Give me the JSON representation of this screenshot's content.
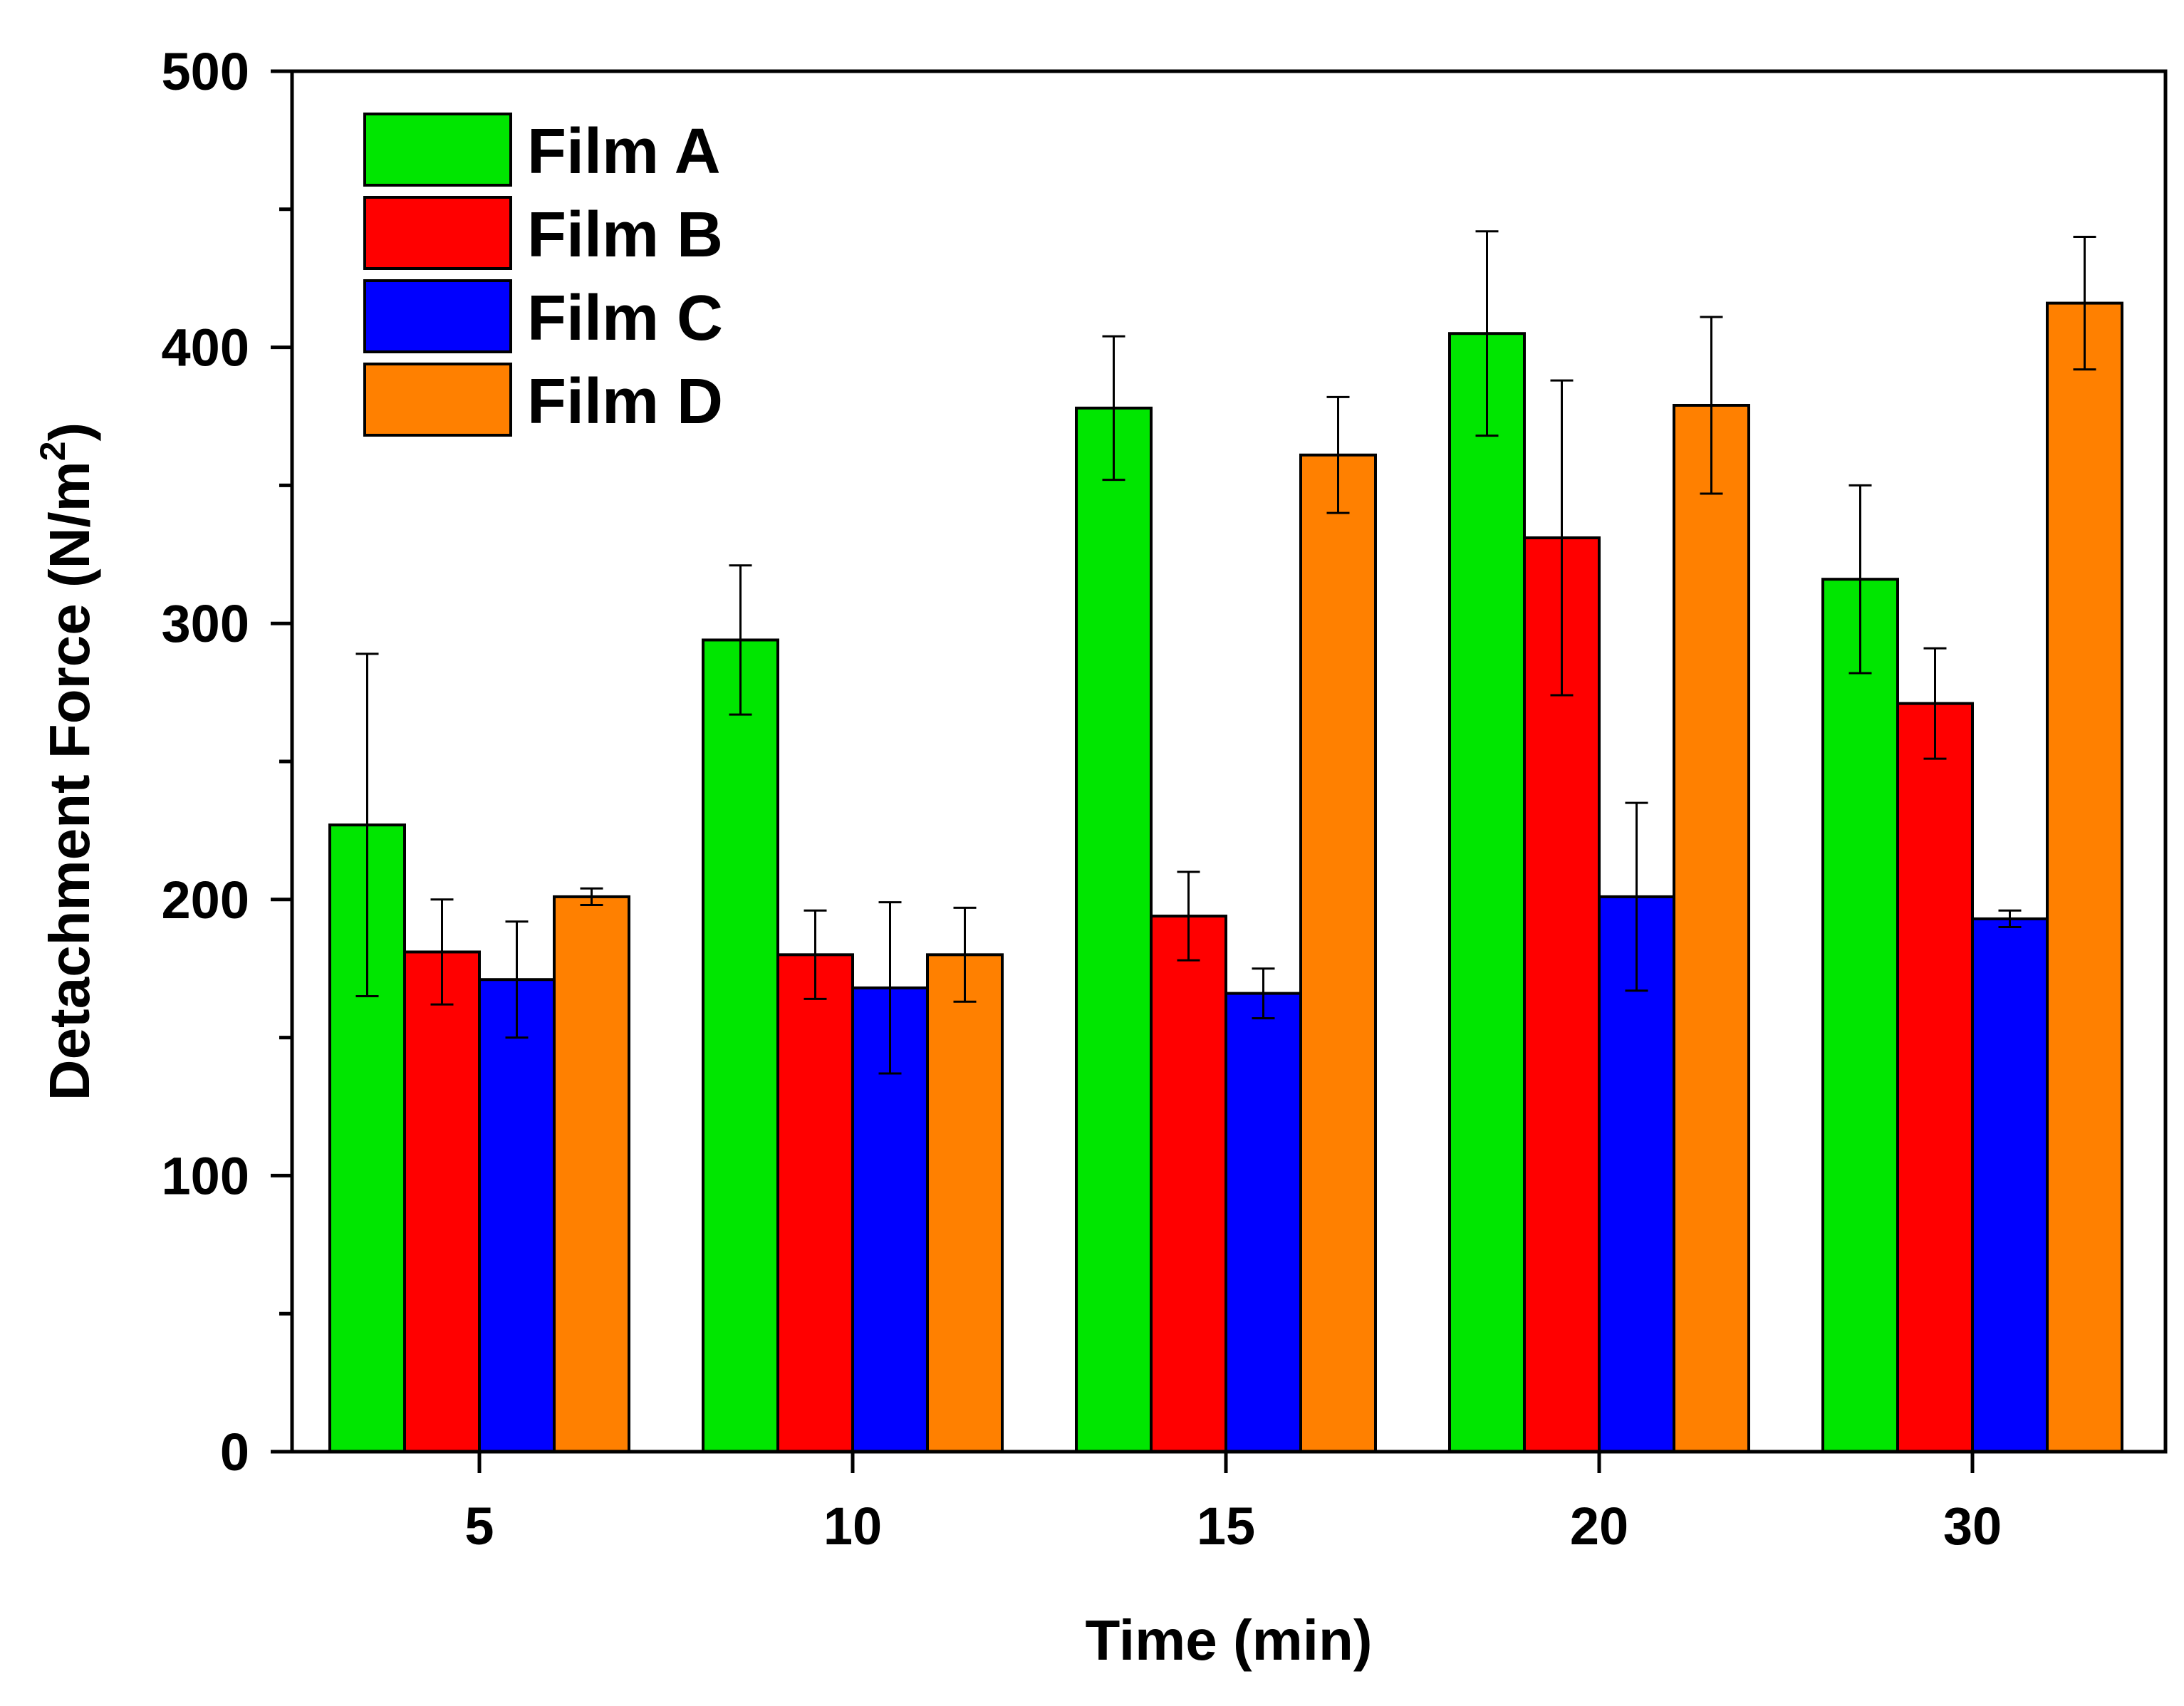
{
  "chart_data": {
    "type": "bar",
    "categories": [
      "5",
      "10",
      "15",
      "20",
      "30"
    ],
    "xlabel": "Time (min)",
    "ylabel": "Detachment Force (N/m",
    "ylabel_superscript": "2",
    "ylabel_suffix": ")",
    "ylim": [
      0,
      500
    ],
    "yticks": [
      "0",
      "100",
      "200",
      "300",
      "400",
      "500"
    ],
    "legend_position": "top-left",
    "grid": false,
    "series": [
      {
        "name": "Film A",
        "color": "#00e600",
        "values": [
          227,
          294,
          378,
          405,
          316
        ],
        "errors": [
          62,
          27,
          26,
          37,
          34
        ]
      },
      {
        "name": "Film B",
        "color": "#ff0000",
        "values": [
          181,
          180,
          194,
          331,
          271
        ],
        "errors": [
          19,
          16,
          16,
          57,
          20
        ]
      },
      {
        "name": "Film C",
        "color": "#0000ff",
        "values": [
          171,
          168,
          166,
          201,
          193
        ],
        "errors": [
          21,
          31,
          9,
          34,
          3
        ]
      },
      {
        "name": "Film D",
        "color": "#ff8000",
        "values": [
          201,
          180,
          361,
          379,
          416
        ],
        "errors": [
          3,
          17,
          21,
          32,
          24
        ]
      }
    ]
  }
}
